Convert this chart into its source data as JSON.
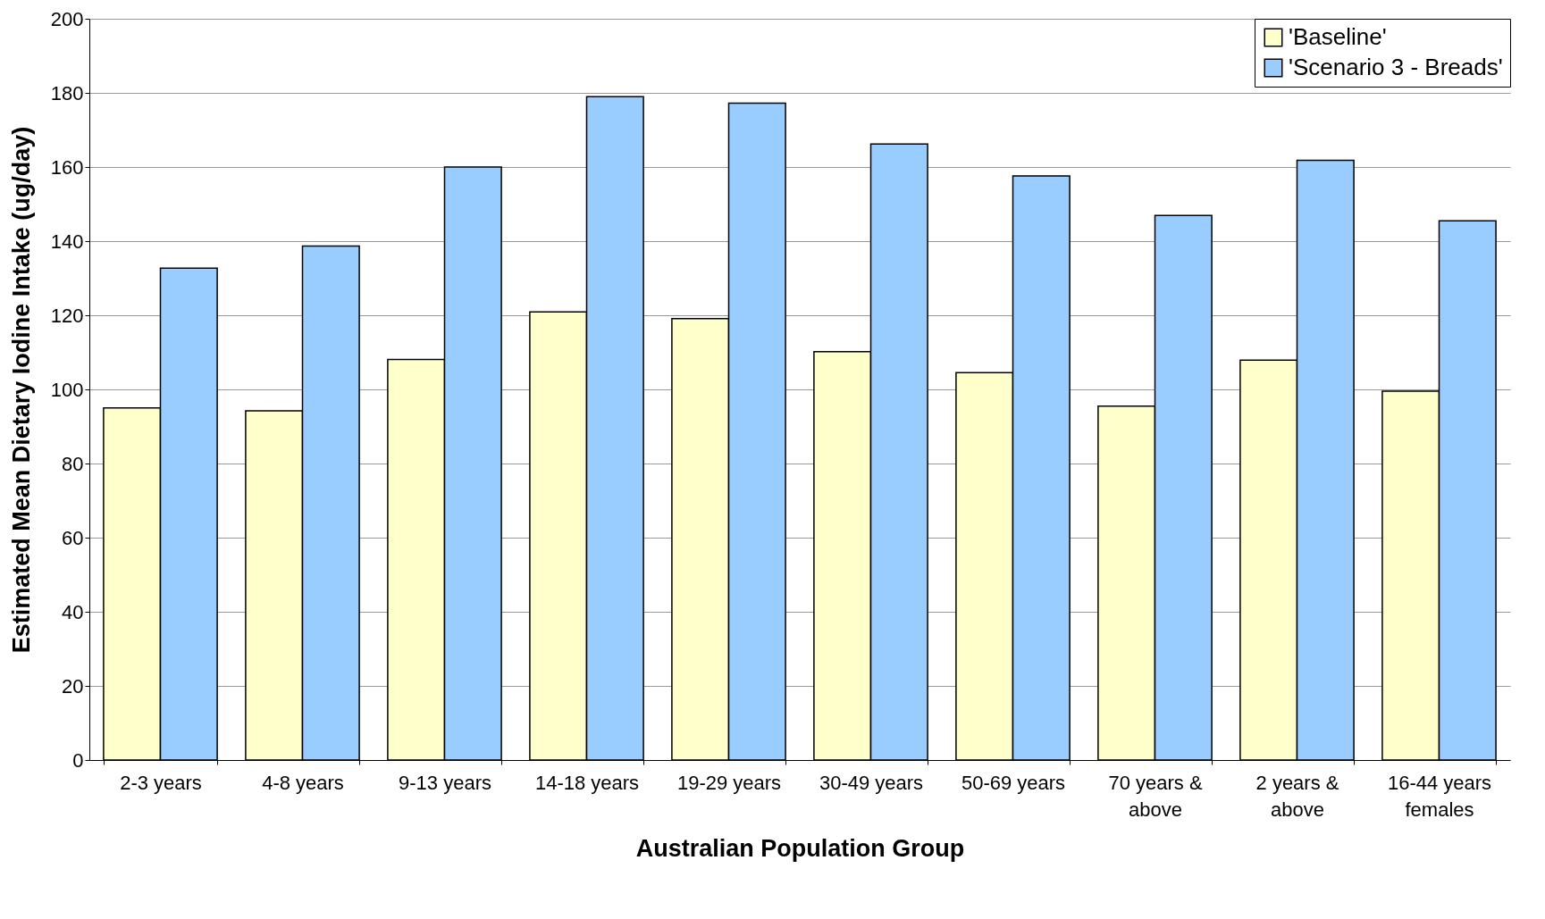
{
  "chart_data": {
    "type": "bar",
    "xlabel": "Australian Population Group",
    "ylabel": "Estimated Mean Dietary Iodine Intake (ug/day)",
    "categories": [
      "2-3 years",
      "4-8 years",
      "9-13 years",
      "14-18 years",
      "19-29 years",
      "30-49 years",
      "50-69 years",
      "70 years &\nabove",
      "2 years &\nabove",
      "16-44 years\nfemales"
    ],
    "series": [
      {
        "name": "'Baseline'",
        "color": "#ffffcc",
        "values": [
          95.0,
          94.2,
          108.1,
          120.9,
          119.1,
          110.2,
          104.5,
          95.5,
          107.9,
          99.5
        ]
      },
      {
        "name": "'Scenario 3 - Breads'",
        "color": "#99ccff",
        "values": [
          132.7,
          138.7,
          160.0,
          179.0,
          177.2,
          166.2,
          157.6,
          146.9,
          161.8,
          145.5
        ]
      }
    ],
    "ylim": [
      0,
      200
    ],
    "yticks": [
      0,
      20,
      40,
      60,
      80,
      100,
      120,
      140,
      160,
      180,
      200
    ],
    "grid": "y",
    "legend": "top right"
  }
}
